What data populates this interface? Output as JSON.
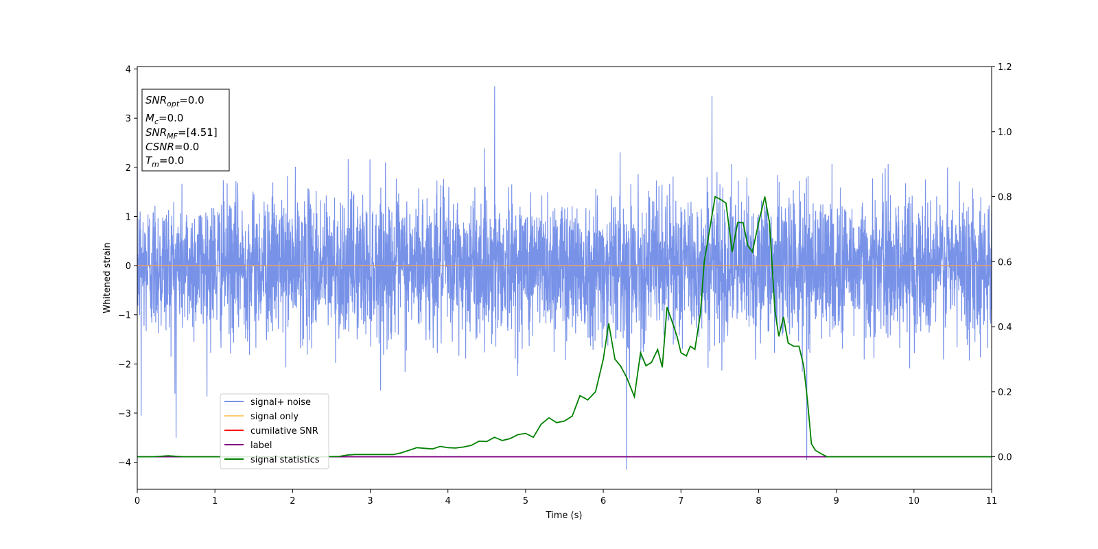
{
  "colors": {
    "signal_noise": "#7892e8",
    "signal_only": "#ffc970",
    "signal_only_flat": "#f0a060",
    "cumulative_snr": "#ff0000",
    "label": "#800080",
    "signal_statistics": "#008000"
  },
  "chart_data": {
    "type": "line",
    "xlabel": "Time (s)",
    "ylabel": "Whitened strain",
    "xlim": [
      0,
      11
    ],
    "ylim": [
      -4.55,
      4.05
    ],
    "y2lim": [
      -0.1,
      1.2
    ],
    "xticks": [
      "0",
      "1",
      "2",
      "3",
      "4",
      "5",
      "6",
      "7",
      "8",
      "9",
      "10",
      "11"
    ],
    "yticks": [
      "−4",
      "−3",
      "−2",
      "−1",
      "0",
      "1",
      "2",
      "3",
      "4"
    ],
    "y2ticks": [
      "0.0",
      "0.2",
      "0.4",
      "0.6",
      "0.8",
      "1.0",
      "1.2"
    ],
    "grid": false,
    "legend_position": "lower-left",
    "annotation": {
      "snr_opt": "=0.0",
      "mc": "=0.0",
      "snr_mf": "=[4.51]",
      "csnr": "=0.0",
      "tm": "=0.0"
    },
    "series": [
      {
        "name": "signal+ noise",
        "axis": "left",
        "description": "white noise band roughly between -2 and 2, occasional spikes",
        "peaks": [
          [
            0.5,
            -3.5
          ],
          [
            4.6,
            3.65
          ],
          [
            6.3,
            -4.15
          ],
          [
            7.4,
            3.45
          ],
          [
            8.62,
            -3.95
          ],
          [
            0.05,
            -3.05
          ]
        ]
      },
      {
        "name": "signal only",
        "axis": "left",
        "x": [
          0,
          11
        ],
        "y": [
          0,
          0
        ]
      },
      {
        "name": "cumilative SNR",
        "axis": "left",
        "x": [],
        "y": []
      },
      {
        "name": "label",
        "axis": "right",
        "x": [
          0,
          11
        ],
        "y": [
          0,
          0
        ]
      },
      {
        "name": "signal statistics",
        "axis": "right",
        "x": [
          0,
          0.2,
          0.4,
          0.6,
          0.8,
          1.0,
          1.2,
          1.4,
          1.6,
          1.8,
          2.0,
          2.2,
          2.4,
          2.6,
          2.7,
          2.8,
          2.9,
          3.0,
          3.1,
          3.2,
          3.3,
          3.4,
          3.5,
          3.6,
          3.7,
          3.8,
          3.9,
          4.0,
          4.1,
          4.2,
          4.3,
          4.4,
          4.5,
          4.6,
          4.7,
          4.8,
          4.9,
          5.0,
          5.1,
          5.2,
          5.3,
          5.4,
          5.5,
          5.6,
          5.7,
          5.8,
          5.9,
          6.0,
          6.07,
          6.15,
          6.22,
          6.3,
          6.4,
          6.48,
          6.55,
          6.62,
          6.7,
          6.76,
          6.82,
          6.88,
          6.95,
          7.0,
          7.07,
          7.12,
          7.18,
          7.25,
          7.3,
          7.37,
          7.44,
          7.52,
          7.58,
          7.66,
          7.73,
          7.8,
          7.86,
          7.92,
          8.0,
          8.08,
          8.14,
          8.21,
          8.26,
          8.32,
          8.38,
          8.45,
          8.52,
          8.58,
          8.63,
          8.68,
          8.73,
          8.8,
          8.88,
          9.0,
          9.2,
          9.5,
          10.0,
          10.5,
          11.0
        ],
        "y": [
          0.0,
          0.0,
          0.003,
          0.0,
          0.0,
          0.0,
          0.0,
          0.0,
          0.0,
          0.0,
          0.0,
          0.0,
          0.0,
          0.001,
          0.005,
          0.007,
          0.007,
          0.007,
          0.007,
          0.007,
          0.007,
          0.012,
          0.02,
          0.028,
          0.026,
          0.024,
          0.032,
          0.028,
          0.027,
          0.03,
          0.035,
          0.048,
          0.047,
          0.06,
          0.05,
          0.056,
          0.068,
          0.072,
          0.06,
          0.1,
          0.12,
          0.105,
          0.11,
          0.125,
          0.188,
          0.175,
          0.2,
          0.3,
          0.41,
          0.3,
          0.28,
          0.245,
          0.185,
          0.32,
          0.28,
          0.29,
          0.33,
          0.275,
          0.46,
          0.42,
          0.37,
          0.32,
          0.31,
          0.34,
          0.33,
          0.44,
          0.6,
          0.7,
          0.8,
          0.79,
          0.78,
          0.63,
          0.72,
          0.72,
          0.65,
          0.63,
          0.72,
          0.8,
          0.72,
          0.45,
          0.37,
          0.43,
          0.35,
          0.34,
          0.34,
          0.28,
          0.17,
          0.04,
          0.02,
          0.01,
          0.0,
          0.0,
          0.0,
          0.0,
          0.0,
          0.0,
          0.0
        ]
      }
    ]
  }
}
